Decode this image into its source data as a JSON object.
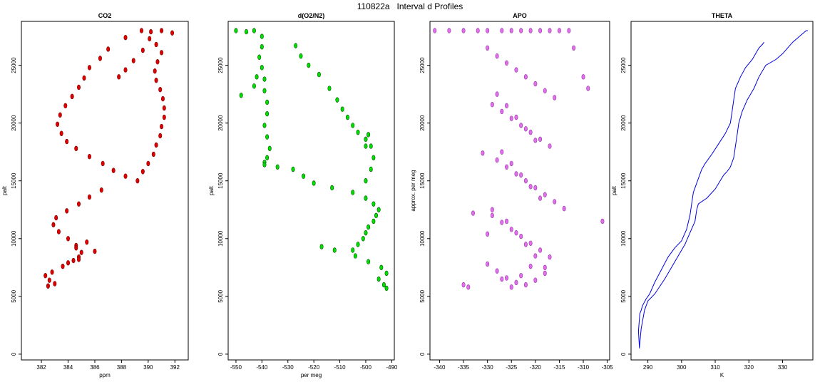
{
  "figure": {
    "title": "110822a   Interval d Profiles"
  },
  "chart_data": [
    {
      "type": "scatter",
      "title": "CO2",
      "xlabel": "ppm",
      "ylabel": "palt",
      "xlim": [
        380.5,
        393
      ],
      "ylim": [
        -500,
        28800
      ],
      "xticks": [
        382,
        384,
        386,
        388,
        390,
        392
      ],
      "yticks": [
        0,
        5000,
        10000,
        15000,
        20000,
        25000
      ],
      "color": "#e00000",
      "edge_color": "#7a0000",
      "series": [
        {
          "x": [
            389.5,
            390.2,
            391.0,
            391.8,
            388.3,
            387.0,
            386.4,
            385.6,
            385.2,
            384.8,
            384.3,
            383.8,
            383.4,
            383.2,
            383.5,
            383.9,
            384.6,
            385.6,
            386.6,
            387.4,
            388.3,
            389.2,
            389.6,
            390.0,
            390.4,
            390.6,
            390.9,
            391.0,
            391.2,
            391.2,
            391.1,
            390.9,
            390.6,
            390.5,
            390.7,
            391.0,
            390.6,
            390.1,
            389.6,
            388.9,
            388.3,
            387.8,
            386.5,
            385.6,
            384.8,
            383.9,
            383.1,
            382.9,
            383.3,
            384.0,
            384.6,
            385.0,
            384.8,
            384.4,
            384.0,
            384.6,
            385.4,
            386.0,
            384.8,
            383.6,
            382.8,
            382.3,
            382.6,
            383.0,
            382.5
          ],
          "y": [
            28000,
            27900,
            28000,
            27800,
            27400,
            26400,
            25600,
            24800,
            23900,
            23100,
            22300,
            21500,
            20700,
            19900,
            19100,
            18400,
            17800,
            17100,
            16500,
            15900,
            15400,
            15000,
            15800,
            16500,
            17300,
            18100,
            18900,
            19700,
            20500,
            21300,
            22100,
            22900,
            23700,
            24500,
            25300,
            26100,
            26800,
            27300,
            26300,
            25400,
            24600,
            24000,
            14200,
            13600,
            13000,
            12400,
            11800,
            11200,
            10600,
            10000,
            9400,
            8800,
            8400,
            8100,
            7900,
            9200,
            9700,
            8900,
            8200,
            7600,
            7100,
            6800,
            6400,
            6100,
            5900
          ]
        }
      ]
    },
    {
      "type": "scatter",
      "title": "d(O2/N2)",
      "xlabel": "per meg",
      "ylabel": "palt",
      "xlim": [
        -553,
        -489
      ],
      "ylim": [
        -500,
        28800
      ],
      "xticks": [
        -550,
        -540,
        -530,
        -520,
        -510,
        -500,
        -490
      ],
      "yticks": [
        0,
        5000,
        10000,
        15000,
        20000,
        25000
      ],
      "color": "#00e000",
      "edge_color": "#005500",
      "series": [
        {
          "x": [
            -550,
            -546,
            -543,
            -540,
            -540,
            -541,
            -540,
            -539,
            -539,
            -538,
            -538,
            -539,
            -538,
            -537,
            -538,
            -539,
            -539,
            -534,
            -528,
            -524,
            -520,
            -513,
            -505,
            -500,
            -497,
            -495,
            -496,
            -497,
            -499,
            -500,
            -501,
            -503,
            -505,
            -504,
            -499,
            -494,
            -492,
            -495,
            -493,
            -492,
            -512,
            -517,
            -500,
            -498,
            -497,
            -500,
            -499,
            -527,
            -525,
            -522,
            -518,
            -514,
            -511,
            -509,
            -507,
            -505,
            -503,
            -500,
            -498,
            -548,
            -543,
            -542
          ],
          "y": [
            28000,
            27900,
            28000,
            27500,
            26600,
            25700,
            24800,
            23800,
            22800,
            21800,
            20800,
            19800,
            18800,
            17800,
            17000,
            16600,
            16400,
            16200,
            16000,
            15400,
            14800,
            14400,
            14000,
            13500,
            13000,
            12500,
            12000,
            11500,
            11000,
            10500,
            10000,
            9500,
            9000,
            8500,
            8000,
            7500,
            7000,
            6500,
            6000,
            5700,
            9000,
            9300,
            15000,
            16000,
            17000,
            18000,
            19000,
            26700,
            25800,
            25000,
            24200,
            23000,
            22000,
            21200,
            20500,
            19800,
            19200,
            18600,
            18000,
            22400,
            23200,
            24000
          ]
        }
      ]
    },
    {
      "type": "scatter",
      "title": "APO",
      "xlabel": "",
      "ylabel": "approx. per meg",
      "xlim": [
        -342,
        -304.5
      ],
      "ylim": [
        -500,
        28800
      ],
      "xticks": [
        -340,
        -335,
        -330,
        -325,
        -320,
        -315,
        -310,
        -305
      ],
      "yticks": [
        0,
        5000,
        10000,
        15000,
        20000,
        25000
      ],
      "color": "#e070e8",
      "edge_color": "#9a35b0",
      "series": [
        {
          "x": [
            -341,
            -338,
            -335,
            -332,
            -330,
            -327,
            -325,
            -323,
            -321,
            -319,
            -317,
            -315,
            -313,
            -330,
            -328,
            -326,
            -324,
            -322,
            -320,
            -318,
            -316,
            -329,
            -327,
            -325,
            -323,
            -321,
            -319,
            -317,
            -331,
            -328,
            -326,
            -324,
            -322,
            -320,
            -318,
            -316,
            -314,
            -329,
            -327,
            -325,
            -323,
            -321,
            -319,
            -317,
            -330,
            -328,
            -326,
            -324,
            -322,
            -320,
            -318,
            -328,
            -326,
            -324,
            -322,
            -320,
            -327,
            -325,
            -323,
            -321,
            -319,
            -329,
            -326,
            -324,
            -322,
            -320,
            -318,
            -327,
            -325,
            -323,
            -321,
            -312,
            -310,
            -309,
            -306,
            -335,
            -334,
            -333,
            -330
          ],
          "y": [
            28000,
            28000,
            28000,
            28000,
            28000,
            28000,
            28000,
            28000,
            28000,
            28000,
            28000,
            28000,
            28000,
            26500,
            25800,
            25200,
            24600,
            24000,
            23400,
            22800,
            22200,
            21600,
            21000,
            20400,
            19800,
            19200,
            18600,
            18000,
            17400,
            16800,
            16200,
            15600,
            15000,
            14400,
            13800,
            13200,
            12600,
            12000,
            11400,
            10800,
            10200,
            9600,
            9000,
            8400,
            7800,
            7200,
            6600,
            6200,
            6000,
            6400,
            7000,
            22500,
            21500,
            20500,
            19500,
            18500,
            17500,
            16500,
            15500,
            14500,
            13500,
            12500,
            11500,
            10500,
            9500,
            8500,
            7500,
            6500,
            5800,
            6800,
            7600,
            26500,
            24000,
            23000,
            11500,
            6000,
            5800,
            12200,
            10400
          ]
        }
      ]
    },
    {
      "type": "line",
      "title": "THETA",
      "xlabel": "K",
      "ylabel": "palt",
      "xlim": [
        285,
        339
      ],
      "ylim": [
        -500,
        28800
      ],
      "xticks": [
        290,
        300,
        310,
        320,
        330
      ],
      "yticks": [
        0,
        5000,
        10000,
        15000,
        20000,
        25000
      ],
      "color": "#0000e0",
      "series": [
        {
          "name": "",
          "x": [
            287.5,
            287.2,
            287.6,
            288.0,
            288.4,
            289.5,
            290.5,
            292.0,
            294.0,
            296.0,
            298.0,
            300.0,
            301.5,
            302.5,
            303.0,
            303.5,
            305.0,
            306.0,
            307.0,
            309.0,
            311.0,
            313.0,
            314.5,
            315.0,
            315.5,
            316.0,
            317.5,
            319.0,
            321.0,
            322.0,
            323.0,
            324.0,
            324.5
          ],
          "y": [
            500,
            2000,
            3500,
            3800,
            4200,
            4800,
            5200,
            6200,
            7300,
            8400,
            9200,
            9800,
            10800,
            12000,
            13000,
            14000,
            15200,
            16000,
            16500,
            17300,
            18200,
            19100,
            20000,
            21000,
            22000,
            23000,
            24000,
            24800,
            25500,
            26000,
            26500,
            26800,
            27000
          ]
        },
        {
          "name": "",
          "x": [
            287.5,
            288.0,
            289.0,
            290.0,
            292.0,
            295.0,
            297.0,
            299.0,
            301.0,
            302.5,
            304.0,
            304.5,
            305.0,
            307.5,
            310.0,
            312.5,
            313.5,
            314.5,
            315.5,
            316.0,
            316.5,
            317.0,
            318.0,
            319.5,
            321.5,
            323.0,
            325.0,
            328.0,
            330.0,
            331.5,
            333.0,
            335.0,
            337.0,
            337.5
          ],
          "y": [
            600,
            2200,
            3800,
            4600,
            5200,
            6500,
            7500,
            8500,
            9500,
            10500,
            11500,
            12500,
            13000,
            13500,
            14300,
            15500,
            15800,
            16200,
            17000,
            18000,
            19000,
            20000,
            21000,
            22000,
            23000,
            24000,
            25000,
            25500,
            26000,
            26500,
            27000,
            27500,
            28000,
            28000
          ]
        }
      ]
    }
  ]
}
